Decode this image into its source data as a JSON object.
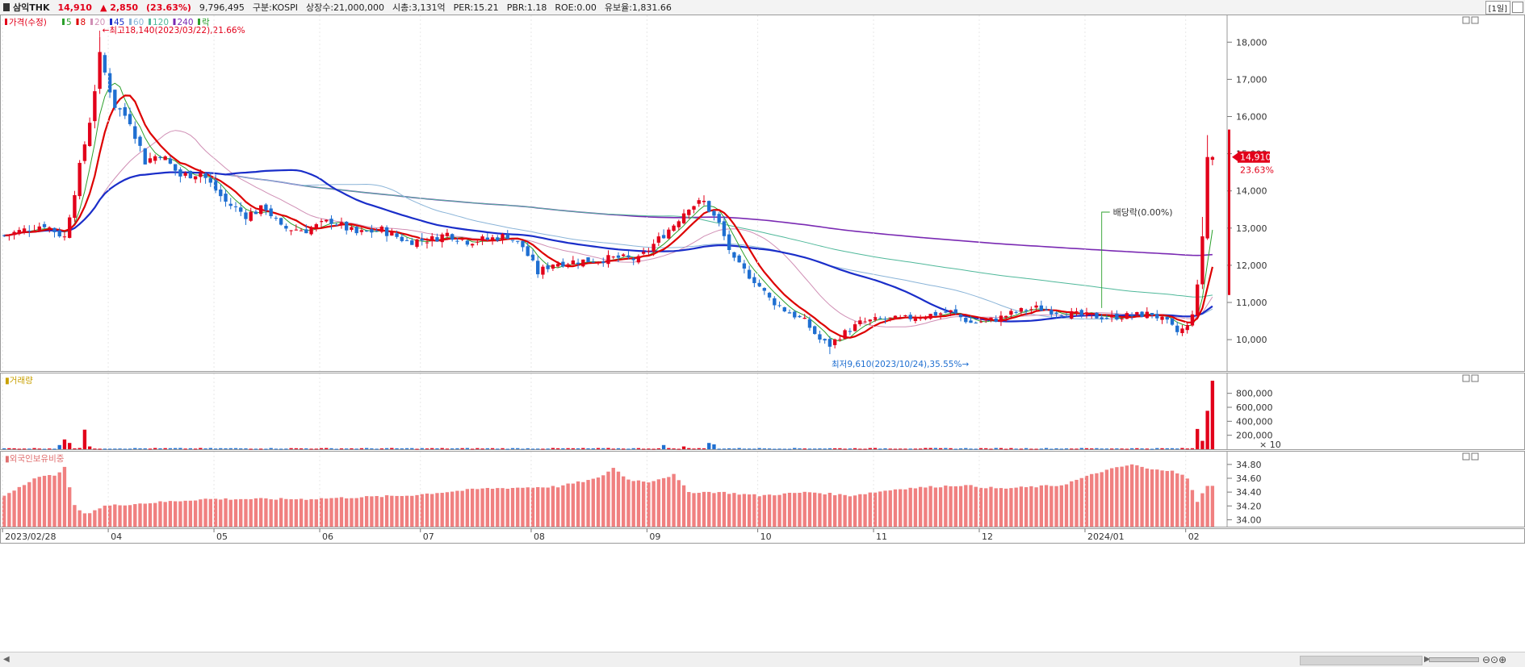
{
  "header": {
    "name": "삼익THK",
    "price": "14,910",
    "change": "▲ 2,850",
    "change_pct": "(23.63%)",
    "volume": "9,796,495",
    "market": "구분:KOSPI",
    "shares": "상장수:21,000,000",
    "mktcap": "시총:3,131억",
    "per": "PER:15.21",
    "pbr": "PBR:1.18",
    "roe": "ROE:0.00",
    "retention": "유보율:1,831.66",
    "period": "[1일]"
  },
  "colors": {
    "up": "#e2001a",
    "down": "#1f6fd1",
    "ma5": "#2ca02c",
    "ma8": "#dd0000",
    "ma20": "#d08fb5",
    "ma45": "#1a2ec9",
    "ma60": "#8ab4d8",
    "ma120": "#4fb89a",
    "ma240": "#7a2ab3",
    "foreign_bar": "#f08080",
    "grid": "#e8e8e8"
  },
  "chart_data": [
    {
      "type": "candlestick",
      "title": "가격(수정)",
      "legend": [
        {
          "label": "가격(수정)",
          "color": "#e2001a"
        },
        {
          "label": "5",
          "color": "#2ca02c"
        },
        {
          "label": "8",
          "color": "#dd0000"
        },
        {
          "label": "20",
          "color": "#d08fb5"
        },
        {
          "label": "45",
          "color": "#1a2ec9"
        },
        {
          "label": "60",
          "color": "#8ab4d8"
        },
        {
          "label": "120",
          "color": "#4fb89a"
        },
        {
          "label": "240",
          "color": "#7a2ab3"
        },
        {
          "label": "락",
          "color": "#2ca02c"
        }
      ],
      "x_ticks": [
        "2023/02/28",
        "04",
        "05",
        "06",
        "07",
        "08",
        "09",
        "10",
        "11",
        "12",
        "2024/01",
        "02"
      ],
      "y_ticks": [
        "10,000",
        "11,000",
        "12,000",
        "13,000",
        "14,000",
        "15,000",
        "16,000",
        "17,000",
        "18,000"
      ],
      "ylim": [
        9200,
        18700
      ],
      "anchors": [
        [
          0,
          12800
        ],
        [
          4,
          12950
        ],
        [
          8,
          13100
        ],
        [
          12,
          12750
        ],
        [
          14,
          14000
        ],
        [
          17,
          15900
        ],
        [
          19,
          17600
        ],
        [
          22,
          16300
        ],
        [
          25,
          15900
        ],
        [
          28,
          14800
        ],
        [
          31,
          15000
        ],
        [
          35,
          14400
        ],
        [
          39,
          14500
        ],
        [
          44,
          13700
        ],
        [
          48,
          13350
        ],
        [
          52,
          13550
        ],
        [
          55,
          13000
        ],
        [
          60,
          12950
        ],
        [
          65,
          13200
        ],
        [
          70,
          12850
        ],
        [
          75,
          12950
        ],
        [
          80,
          12650
        ],
        [
          85,
          12700
        ],
        [
          88,
          12850
        ],
        [
          92,
          12650
        ],
        [
          96,
          12700
        ],
        [
          100,
          12800
        ],
        [
          103,
          12500
        ],
        [
          106,
          11800
        ],
        [
          109,
          12050
        ],
        [
          113,
          12100
        ],
        [
          118,
          12150
        ],
        [
          122,
          12200
        ],
        [
          126,
          12150
        ],
        [
          130,
          12700
        ],
        [
          133,
          13100
        ],
        [
          136,
          13600
        ],
        [
          139,
          13700
        ],
        [
          142,
          13100
        ],
        [
          145,
          12100
        ],
        [
          149,
          11600
        ],
        [
          152,
          11100
        ],
        [
          155,
          10800
        ],
        [
          159,
          10500
        ],
        [
          162,
          10000
        ],
        [
          164,
          9850
        ],
        [
          166,
          10100
        ],
        [
          170,
          10450
        ],
        [
          174,
          10550
        ],
        [
          178,
          10550
        ],
        [
          183,
          10650
        ],
        [
          188,
          10750
        ],
        [
          192,
          10450
        ],
        [
          197,
          10550
        ],
        [
          201,
          10750
        ],
        [
          205,
          10850
        ],
        [
          209,
          10750
        ],
        [
          214,
          10650
        ],
        [
          219,
          10600
        ],
        [
          224,
          10650
        ],
        [
          228,
          10700
        ],
        [
          231,
          10450
        ],
        [
          233,
          10200
        ],
        [
          235,
          10350
        ],
        [
          236,
          10750
        ],
        [
          237,
          11400
        ],
        [
          238,
          12800
        ],
        [
          239,
          14910
        ]
      ],
      "annotations": [
        {
          "text": "최고18,140(2023/03/22),21.66%",
          "value": 18140
        },
        {
          "text": "최저9,610(2023/10/24),35.55%",
          "value": 9610
        },
        {
          "text": "배당락(0.00%)"
        }
      ],
      "last_price_label": "14,910",
      "last_change_label": "23.63%"
    },
    {
      "type": "bar",
      "title": "거래량",
      "y_ticks": [
        "200,000",
        "400,000",
        "600,000",
        "800,000"
      ],
      "unit_label": "× 10",
      "ylim": [
        0,
        1050000
      ],
      "spikes": [
        {
          "x": 11,
          "value": 60000
        },
        {
          "x": 12,
          "value": 140000
        },
        {
          "x": 13,
          "value": 90000
        },
        {
          "x": 16,
          "value": 280000
        },
        {
          "x": 17,
          "value": 40000
        },
        {
          "x": 131,
          "value": 60000
        },
        {
          "x": 135,
          "value": 40000
        },
        {
          "x": 140,
          "value": 90000
        },
        {
          "x": 141,
          "value": 70000
        },
        {
          "x": 237,
          "value": 290000
        },
        {
          "x": 238,
          "value": 120000
        },
        {
          "x": 239,
          "value": 550000
        },
        {
          "x": 240,
          "value": 980000
        }
      ],
      "base_value": 12000
    },
    {
      "type": "bar",
      "title": "외국인보유비중",
      "y_ticks": [
        "34.00",
        "34.20",
        "34.40",
        "34.60",
        "34.80"
      ],
      "ylim": [
        33.9,
        34.95
      ],
      "anchors": [
        [
          0,
          34.35
        ],
        [
          6,
          34.6
        ],
        [
          10,
          34.65
        ],
        [
          12,
          34.75
        ],
        [
          14,
          34.2
        ],
        [
          16,
          34.08
        ],
        [
          20,
          34.2
        ],
        [
          30,
          34.25
        ],
        [
          40,
          34.3
        ],
        [
          60,
          34.3
        ],
        [
          80,
          34.35
        ],
        [
          95,
          34.45
        ],
        [
          110,
          34.48
        ],
        [
          118,
          34.6
        ],
        [
          121,
          34.75
        ],
        [
          124,
          34.58
        ],
        [
          128,
          34.55
        ],
        [
          133,
          34.65
        ],
        [
          136,
          34.4
        ],
        [
          142,
          34.4
        ],
        [
          150,
          34.35
        ],
        [
          160,
          34.4
        ],
        [
          168,
          34.35
        ],
        [
          178,
          34.45
        ],
        [
          190,
          34.5
        ],
        [
          198,
          34.45
        ],
        [
          210,
          34.5
        ],
        [
          218,
          34.7
        ],
        [
          224,
          34.8
        ],
        [
          228,
          34.72
        ],
        [
          232,
          34.72
        ],
        [
          235,
          34.6
        ],
        [
          237,
          34.25
        ],
        [
          239,
          34.5
        ],
        [
          240,
          34.5
        ]
      ]
    }
  ]
}
